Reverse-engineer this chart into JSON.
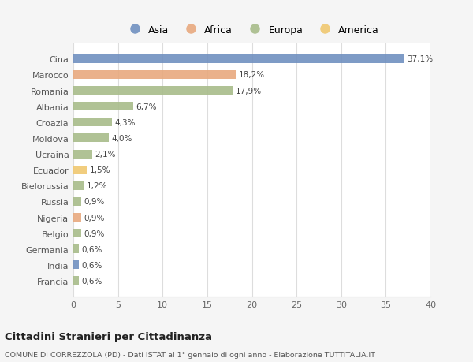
{
  "countries": [
    "Cina",
    "Marocco",
    "Romania",
    "Albania",
    "Croazia",
    "Moldova",
    "Ucraina",
    "Ecuador",
    "Bielorussia",
    "Russia",
    "Nigeria",
    "Belgio",
    "Germania",
    "India",
    "Francia"
  ],
  "values": [
    37.1,
    18.2,
    17.9,
    6.7,
    4.3,
    4.0,
    2.1,
    1.5,
    1.2,
    0.9,
    0.9,
    0.9,
    0.6,
    0.6,
    0.6
  ],
  "labels": [
    "37,1%",
    "18,2%",
    "17,9%",
    "6,7%",
    "4,3%",
    "4,0%",
    "2,1%",
    "1,5%",
    "1,2%",
    "0,9%",
    "0,9%",
    "0,9%",
    "0,6%",
    "0,6%",
    "0,6%"
  ],
  "continents": [
    "Asia",
    "Africa",
    "Europa",
    "Europa",
    "Europa",
    "Europa",
    "Europa",
    "America",
    "Europa",
    "Europa",
    "Africa",
    "Europa",
    "Europa",
    "Asia",
    "Europa"
  ],
  "colors": {
    "Asia": "#7090c0",
    "Africa": "#e8a97e",
    "Europa": "#a8bc8a",
    "America": "#f0c870"
  },
  "legend_order": [
    "Asia",
    "Africa",
    "Europa",
    "America"
  ],
  "xlim": [
    0,
    40
  ],
  "xticks": [
    0,
    5,
    10,
    15,
    20,
    25,
    30,
    35,
    40
  ],
  "title": "Cittadini Stranieri per Cittadinanza",
  "subtitle": "COMUNE DI CORREZZOLA (PD) - Dati ISTAT al 1° gennaio di ogni anno - Elaborazione TUTTITALIA.IT",
  "bg_color": "#f5f5f5",
  "plot_bg_color": "#ffffff"
}
